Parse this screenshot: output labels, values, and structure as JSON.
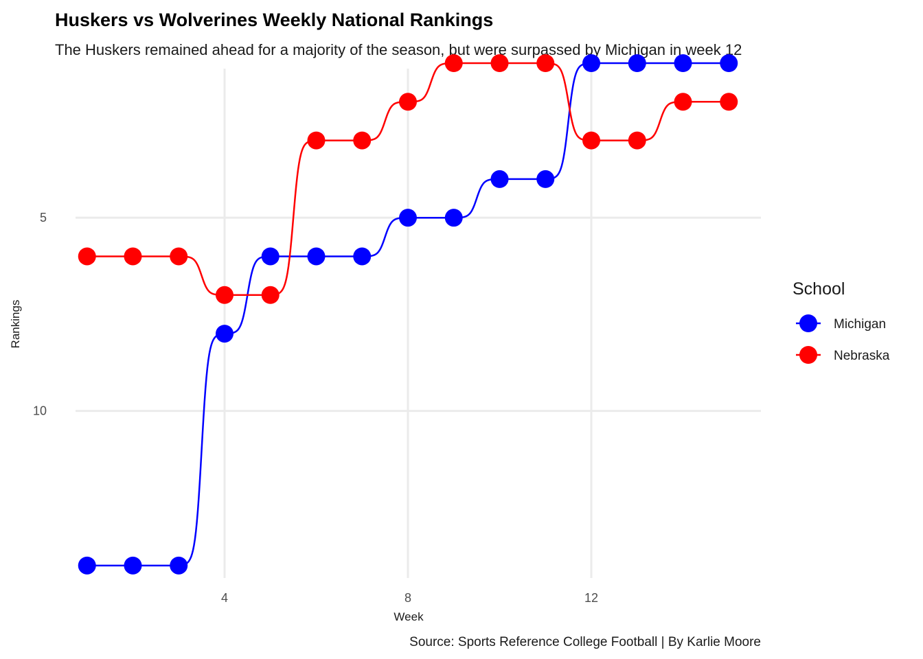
{
  "chart_data": {
    "type": "line",
    "title": "Huskers vs Wolverines Weekly National Rankings",
    "subtitle": "The Huskers remained ahead for a majority of the season, but were surpassed by Michigan in week 12",
    "xlabel": "Week",
    "ylabel": "Rankings",
    "caption": "Source: Sports Reference College Football | By Karlie Moore",
    "x": [
      1,
      2,
      3,
      4,
      5,
      6,
      7,
      8,
      9,
      10,
      11,
      12,
      13,
      14,
      15
    ],
    "x_ticks": [
      4,
      8,
      12
    ],
    "y_ticks": [
      5,
      10
    ],
    "xlim": [
      0.3,
      15.7
    ],
    "ylim": [
      1,
      14.5
    ],
    "y_reversed": true,
    "legend_title": "School",
    "legend_position": "right",
    "series": [
      {
        "name": "Michigan",
        "color": "#0000ff",
        "values": [
          14,
          14,
          14,
          8,
          6,
          6,
          6,
          5,
          5,
          4,
          4,
          1,
          1,
          1,
          1
        ]
      },
      {
        "name": "Nebraska",
        "color": "#ff0000",
        "values": [
          6,
          6,
          6,
          7,
          7,
          3,
          3,
          2,
          1,
          1,
          1,
          3,
          3,
          2,
          2
        ]
      }
    ]
  }
}
